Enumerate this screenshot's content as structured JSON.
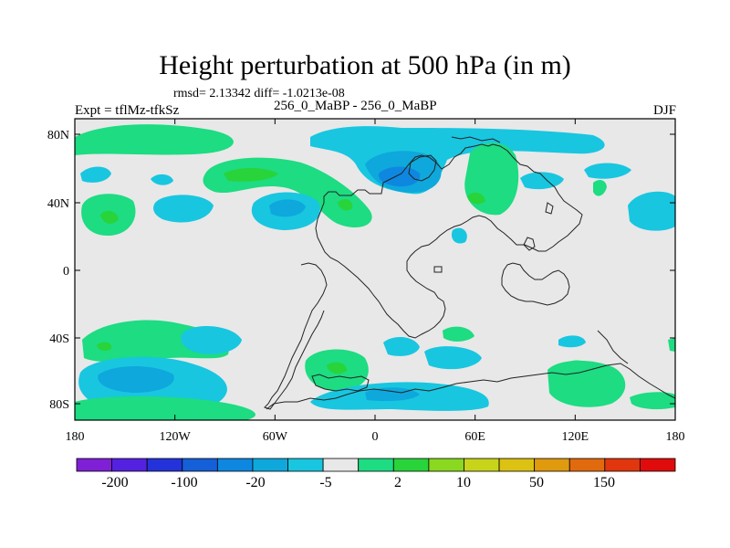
{
  "title": "Height perturbation at 500 hPa (in m)",
  "stats_line": "rmsd= 2.13342 diff= -1.0213e-08",
  "experiment_label": "Expt = tflMz-tfkSz",
  "center_label": "256_0_MaBP - 256_0_MaBP",
  "season_label": "DJF",
  "map": {
    "lat_ticks": [
      "80N",
      "40N",
      "0",
      "40S",
      "80S"
    ],
    "lon_ticks": [
      "180",
      "120W",
      "60W",
      "0",
      "60E",
      "120E",
      "180"
    ],
    "background_color": "#e8e8e8",
    "coastline_color": "#222222"
  },
  "colorbar": {
    "colors": [
      "#7f1fd6",
      "#5521e0",
      "#2433d9",
      "#155fd8",
      "#0e87e0",
      "#0ea8dc",
      "#18c6e0",
      "#e8e8e8",
      "#1ddc82",
      "#28d43a",
      "#8ad81f",
      "#c8d41a",
      "#dcc212",
      "#e09a0e",
      "#e26a0e",
      "#e2360e",
      "#e00c0c"
    ],
    "labels": [
      "-200",
      "-100",
      "-20",
      "-5",
      "2",
      "10",
      "50",
      "150"
    ]
  }
}
